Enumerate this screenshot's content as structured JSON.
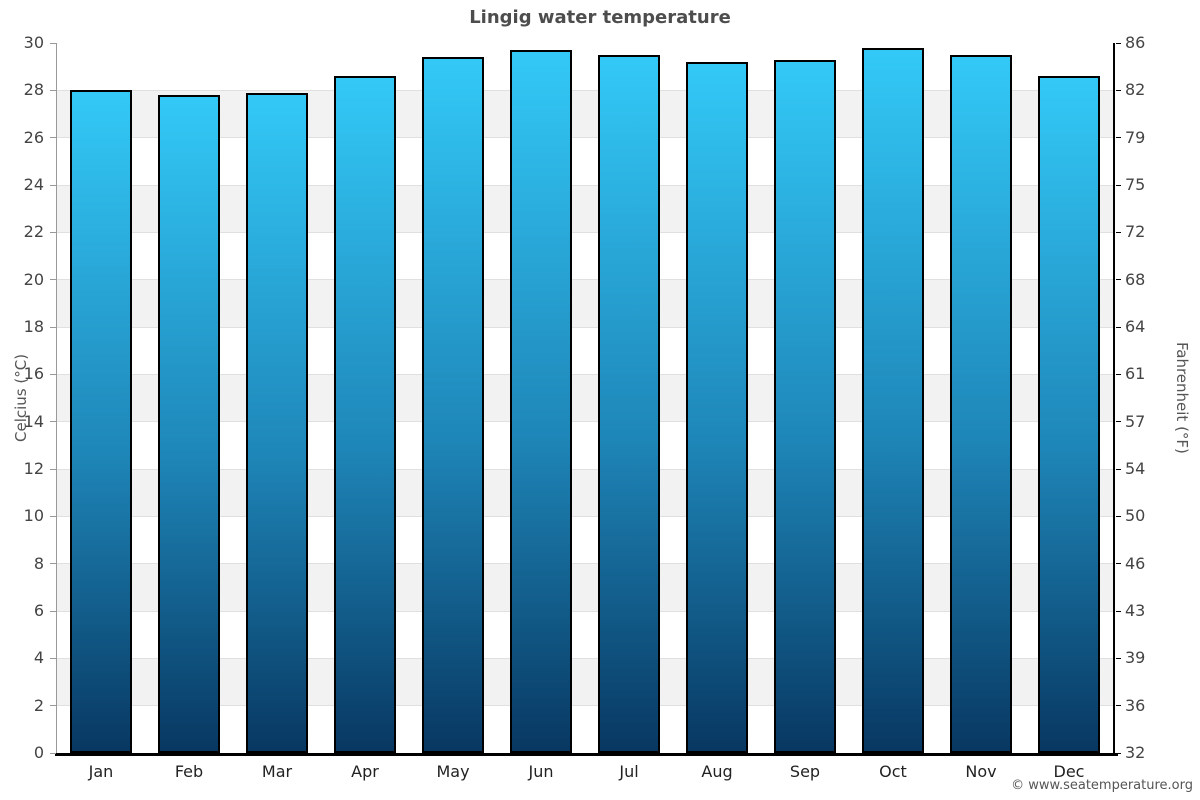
{
  "title": "Lingig water temperature",
  "footer_credit": "© www.seatemperature.org",
  "axes": {
    "left_title": "Celcius (°C)",
    "right_title": "Fahrenheit (°F)",
    "celsius_ticks": [
      0,
      2,
      4,
      6,
      8,
      10,
      12,
      14,
      16,
      18,
      20,
      22,
      24,
      26,
      28,
      30
    ],
    "fahrenheit_labels": [
      "32",
      "36",
      "39",
      "43",
      "46",
      "50",
      "54",
      "57",
      "61",
      "64",
      "68",
      "72",
      "75",
      "79",
      "82",
      "86"
    ]
  },
  "chart_data": {
    "type": "bar",
    "title": "Lingig water temperature",
    "categories": [
      "Jan",
      "Feb",
      "Mar",
      "Apr",
      "May",
      "Jun",
      "Jul",
      "Aug",
      "Sep",
      "Oct",
      "Nov",
      "Dec"
    ],
    "values": [
      28.0,
      27.8,
      27.9,
      28.6,
      29.4,
      29.7,
      29.5,
      29.2,
      29.3,
      29.8,
      29.5,
      28.6
    ],
    "unit": "°C",
    "xlabel": "",
    "ylabel": "Celcius (°C)",
    "ylabel_right": "Fahrenheit (°F)",
    "ylim": [
      0,
      30
    ],
    "grid": "alternating horizontal bands every 2°C",
    "legend": "none",
    "colors": {
      "bar_gradient_top": "#33c9f7",
      "bar_gradient_bottom": "#0a3a63",
      "bar_border": "#000000",
      "band_gray": "#f2f2f2",
      "gridline": "#e0e0e0",
      "left_axis": "#999999",
      "right_axis": "#000000",
      "title_text": "#4d4d4d",
      "tick_text": "#444444"
    }
  }
}
